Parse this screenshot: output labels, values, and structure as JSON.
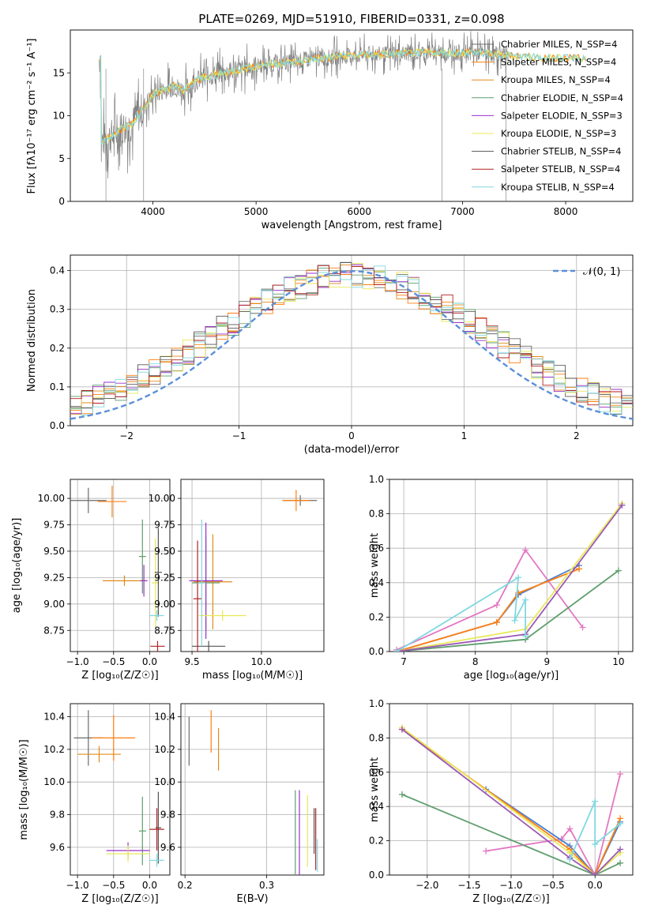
{
  "figure_title": "PLATE=0269, MJD=51910, FIBERID=0331, z=0.098",
  "series_colors": [
    "#6b6b6b",
    "#ff7f0e",
    "#e08b1a",
    "#5f9e6e",
    "#9b30c8",
    "#e8e85a",
    "#555555",
    "#b22222",
    "#7fd8e0"
  ],
  "chart_data": [
    {
      "type": "line",
      "panel": "spectrum",
      "title": "PLATE=0269, MJD=51910, FIBERID=0331, z=0.098",
      "xlabel": "wavelength [Angstrom, rest frame]",
      "ylabel": "Flux [fλ10⁻¹⁷ erg cm⁻² s⁻¹ A⁻¹]",
      "xlim": [
        3200,
        8650
      ],
      "ylim": [
        0,
        20
      ],
      "xticks": [
        "4000",
        "5000",
        "6000",
        "7000",
        "8000"
      ],
      "yticks": [
        "0",
        "5",
        "10",
        "15"
      ],
      "legend_position": "right",
      "legend": [
        "Chabrier MILES, N_SSP=4",
        "Salpeter MILES, N_SSP=4",
        "Kroupa MILES, N_SSP=4",
        "Chabrier ELODIE, N_SSP=4",
        "Salpeter ELODIE, N_SSP=3",
        "Kroupa ELODIE, N_SSP=3",
        "Chabrier STELIB, N_SSP=4",
        "Salpeter STELIB, N_SSP=4",
        "Kroupa STELIB, N_SSP=4"
      ],
      "data_envelope": {
        "x": [
          3500,
          3600,
          3700,
          3800,
          3900,
          4000,
          4100,
          4200,
          4300,
          4400,
          4500,
          4700,
          4900,
          5100,
          5300,
          5500,
          5700,
          5900,
          6100,
          6300,
          6500,
          6700,
          6900,
          7100,
          7300,
          7450,
          7700,
          8000
        ],
        "y": [
          7.0,
          7.6,
          8.5,
          9.0,
          10.8,
          12.5,
          13.0,
          13.5,
          13.0,
          14.0,
          14.5,
          15.0,
          15.5,
          16.0,
          16.2,
          16.5,
          16.8,
          17.0,
          17.1,
          17.2,
          17.3,
          17.4,
          17.3,
          17.4,
          17.2,
          17.0,
          16.8,
          16.7
        ]
      }
    },
    {
      "type": "histogram",
      "panel": "residuals",
      "xlabel": "(data-model)/error",
      "ylabel": "Normed distribution",
      "xlim": [
        -2.5,
        2.5
      ],
      "ylim": [
        0,
        0.44
      ],
      "xticks": [
        "−2",
        "−1",
        "0",
        "1",
        "2"
      ],
      "yticks": [
        "0.0",
        "0.1",
        "0.2",
        "0.3",
        "0.4"
      ],
      "legend": [
        "𝒩(0, 1)"
      ],
      "legend_position": "top-right",
      "reference_curve": "normal(0,1)"
    },
    {
      "type": "errorbar",
      "panel": "age-vs-Z",
      "xlabel": "Z [log₁₀(Z/Z☉)]",
      "ylabel": "age  [log₁₀(age/yr)]",
      "xlim": [
        -1.1,
        0.28
      ],
      "ylim": [
        8.55,
        10.18
      ],
      "xticks": [
        "−1.0",
        "−0.5",
        "0.0"
      ],
      "yticks": [
        "8.75",
        "9.00",
        "9.25",
        "9.50",
        "9.75",
        "10.00"
      ],
      "points": [
        {
          "x": -0.85,
          "y": 9.98,
          "xerr": 0.25,
          "yerr": 0.12
        },
        {
          "x": -0.52,
          "y": 9.97,
          "xerr": 0.2,
          "yerr": 0.15
        },
        {
          "x": -0.35,
          "y": 9.22,
          "xerr": 0.3,
          "yerr": 0.05
        },
        {
          "x": -0.1,
          "y": 9.45,
          "xerr": 0.05,
          "yerr": 0.35
        },
        {
          "x": -0.08,
          "y": 9.22,
          "xerr": 0.05,
          "yerr": 0.15
        },
        {
          "x": 0.08,
          "y": 9.2,
          "xerr": 0.05,
          "yerr": 0.42
        },
        {
          "x": 0.12,
          "y": 9.3,
          "xerr": 0.05,
          "yerr": 0.42
        },
        {
          "x": 0.11,
          "y": 8.6,
          "xerr": 0.1,
          "yerr": 0.05
        },
        {
          "x": 0.1,
          "y": 8.89,
          "xerr": 0.1,
          "yerr": 0.05
        }
      ]
    },
    {
      "type": "errorbar",
      "panel": "age-vs-mass",
      "xlabel": "mass [log₁₀(M/M☉)]",
      "ylabel": "",
      "xlim": [
        9.42,
        10.45
      ],
      "ylim": [
        8.55,
        10.18
      ],
      "xticks": [
        "9.5",
        "10.0"
      ],
      "yticks": [
        "8.75",
        "9.00",
        "9.25",
        "9.50",
        "9.75",
        "10.00"
      ],
      "points": [
        {
          "x": 10.28,
          "y": 9.98,
          "xerr": 0.12,
          "yerr": 0.05
        },
        {
          "x": 10.25,
          "y": 9.98,
          "xerr": 0.1,
          "yerr": 0.1
        },
        {
          "x": 9.65,
          "y": 9.21,
          "xerr": 0.14,
          "yerr": 0.45
        },
        {
          "x": 9.6,
          "y": 9.2,
          "xerr": 0.1,
          "yerr": 0.45
        },
        {
          "x": 9.6,
          "y": 9.22,
          "xerr": 0.12,
          "yerr": 0.55
        },
        {
          "x": 9.72,
          "y": 8.89,
          "xerr": 0.17,
          "yerr": 0.05
        },
        {
          "x": 9.62,
          "y": 8.6,
          "xerr": 0.12,
          "yerr": 0.05
        },
        {
          "x": 9.54,
          "y": 9.05,
          "xerr": 0.03,
          "yerr": 0.55
        },
        {
          "x": 9.57,
          "y": 9.2,
          "xerr": 0.03,
          "yerr": 0.6
        }
      ]
    },
    {
      "type": "line",
      "panel": "massweight-vs-age",
      "xlabel": "age  [log₁₀(age/yr)]",
      "ylabel": "mass weight",
      "xlim": [
        6.8,
        10.2
      ],
      "ylim": [
        0,
        1
      ],
      "xticks": [
        "7",
        "8",
        "9",
        "10"
      ],
      "yticks": [
        "0.0",
        "0.2",
        "0.4",
        "0.6",
        "0.8",
        "1.0"
      ],
      "series": [
        {
          "color": "#e377c2",
          "x": [
            6.9,
            8.3,
            8.7,
            9.5
          ],
          "y": [
            0.01,
            0.27,
            0.59,
            0.14
          ]
        },
        {
          "color": "#4a80d0",
          "x": [
            6.9,
            8.3,
            8.6,
            9.45
          ],
          "y": [
            0.0,
            0.17,
            0.33,
            0.5
          ]
        },
        {
          "color": "#ff7f0e",
          "x": [
            6.9,
            8.3,
            8.6,
            9.45
          ],
          "y": [
            0.0,
            0.17,
            0.34,
            0.48
          ]
        },
        {
          "color": "#5f9e6e",
          "x": [
            6.9,
            8.7,
            10.0
          ],
          "y": [
            0.0,
            0.07,
            0.47
          ]
        },
        {
          "color": "#e8e85a",
          "x": [
            6.9,
            8.7,
            10.05
          ],
          "y": [
            0.0,
            0.13,
            0.86
          ]
        },
        {
          "color": "#9b59b6",
          "x": [
            6.9,
            8.7,
            10.05
          ],
          "y": [
            0.0,
            0.1,
            0.85
          ]
        },
        {
          "color": "#7fd8e0",
          "x": [
            6.9,
            8.6,
            8.55,
            8.7,
            8.7
          ],
          "y": [
            0.0,
            0.43,
            0.18,
            0.3,
            0.09
          ]
        }
      ]
    },
    {
      "type": "errorbar",
      "panel": "mass-vs-Z",
      "xlabel": "Z [log₁₀(Z/Z☉)]",
      "ylabel": "mass [log₁₀(M/M☉)]",
      "xlim": [
        -1.1,
        0.28
      ],
      "ylim": [
        9.43,
        10.48
      ],
      "xticks": [
        "−1.0",
        "−0.5",
        "0.0"
      ],
      "yticks": [
        "9.6",
        "9.8",
        "10.0",
        "10.2",
        "10.4"
      ],
      "points": [
        {
          "x": -0.85,
          "y": 10.27,
          "xerr": 0.2,
          "yerr": 0.17
        },
        {
          "x": -0.5,
          "y": 10.27,
          "xerr": 0.3,
          "yerr": 0.14
        },
        {
          "x": -0.7,
          "y": 10.17,
          "xerr": 0.3,
          "yerr": 0.05
        },
        {
          "x": -0.1,
          "y": 9.7,
          "xerr": 0.05,
          "yerr": 0.21
        },
        {
          "x": -0.3,
          "y": 9.58,
          "xerr": 0.3,
          "yerr": 0.05
        },
        {
          "x": -0.3,
          "y": 9.56,
          "xerr": 0.3,
          "yerr": 0.05
        },
        {
          "x": 0.12,
          "y": 9.72,
          "xerr": 0.04,
          "yerr": 0.22
        },
        {
          "x": 0.1,
          "y": 9.71,
          "xerr": 0.1,
          "yerr": 0.13
        },
        {
          "x": 0.1,
          "y": 9.52,
          "xerr": 0.1,
          "yerr": 0.04
        }
      ]
    },
    {
      "type": "errorbar",
      "panel": "mass-vs-EBV",
      "xlabel": "E(B-V)",
      "ylabel": "",
      "xlim": [
        0.195,
        0.37
      ],
      "ylim": [
        9.43,
        10.48
      ],
      "xticks": [
        "0.2",
        "0.3"
      ],
      "yticks": [
        "9.6",
        "9.8",
        "10.0",
        "10.2",
        "10.4"
      ],
      "points": [
        {
          "x": 0.205,
          "y": 10.25,
          "yerr": 0.15
        },
        {
          "x": 0.232,
          "y": 10.31,
          "yerr": 0.13
        },
        {
          "x": 0.241,
          "y": 10.2,
          "yerr": 0.13
        },
        {
          "x": 0.335,
          "y": 9.67,
          "yerr": 0.28
        },
        {
          "x": 0.34,
          "y": 9.67,
          "yerr": 0.28
        },
        {
          "x": 0.35,
          "y": 9.7,
          "yerr": 0.22
        },
        {
          "x": 0.358,
          "y": 9.7,
          "yerr": 0.14
        },
        {
          "x": 0.36,
          "y": 9.65,
          "yerr": 0.19
        },
        {
          "x": 0.362,
          "y": 9.55,
          "yerr": 0.1
        }
      ]
    },
    {
      "type": "line",
      "panel": "massweight-vs-Z",
      "xlabel": "Z [log₁₀(Z/Z☉)]",
      "ylabel": "mass weight",
      "xlim": [
        -2.45,
        0.45
      ],
      "ylim": [
        0,
        1
      ],
      "xticks": [
        "−2.0",
        "−1.5",
        "−1.0",
        "−0.5",
        "0.0"
      ],
      "yticks": [
        "0.0",
        "0.2",
        "0.4",
        "0.6",
        "0.8",
        "1.0"
      ],
      "series": [
        {
          "color": "#e377c2",
          "x": [
            -1.3,
            -0.4,
            -0.3,
            0.0,
            0.3
          ],
          "y": [
            0.14,
            0.21,
            0.27,
            0.0,
            0.59
          ]
        },
        {
          "color": "#4a80d0",
          "x": [
            -1.3,
            -0.3,
            0.0,
            0.3
          ],
          "y": [
            0.5,
            0.17,
            0.0,
            0.31
          ]
        },
        {
          "color": "#ff7f0e",
          "x": [
            -2.3,
            -0.3,
            0.0,
            0.3
          ],
          "y": [
            0.85,
            0.15,
            0.0,
            0.33
          ]
        },
        {
          "color": "#5f9e6e",
          "x": [
            -2.3,
            0.0,
            0.3
          ],
          "y": [
            0.47,
            0.0,
            0.07
          ]
        },
        {
          "color": "#e8e85a",
          "x": [
            -2.3,
            -0.3,
            0.0,
            0.3
          ],
          "y": [
            0.86,
            0.13,
            0.0,
            0.13
          ]
        },
        {
          "color": "#9b59b6",
          "x": [
            -2.3,
            -0.3,
            0.0,
            0.3
          ],
          "y": [
            0.85,
            0.1,
            0.0,
            0.15
          ]
        },
        {
          "color": "#7fd8e0",
          "x": [
            -0.3,
            0.0,
            0.0,
            0.3
          ],
          "y": [
            0.09,
            0.43,
            0.18,
            0.3
          ]
        }
      ]
    }
  ]
}
